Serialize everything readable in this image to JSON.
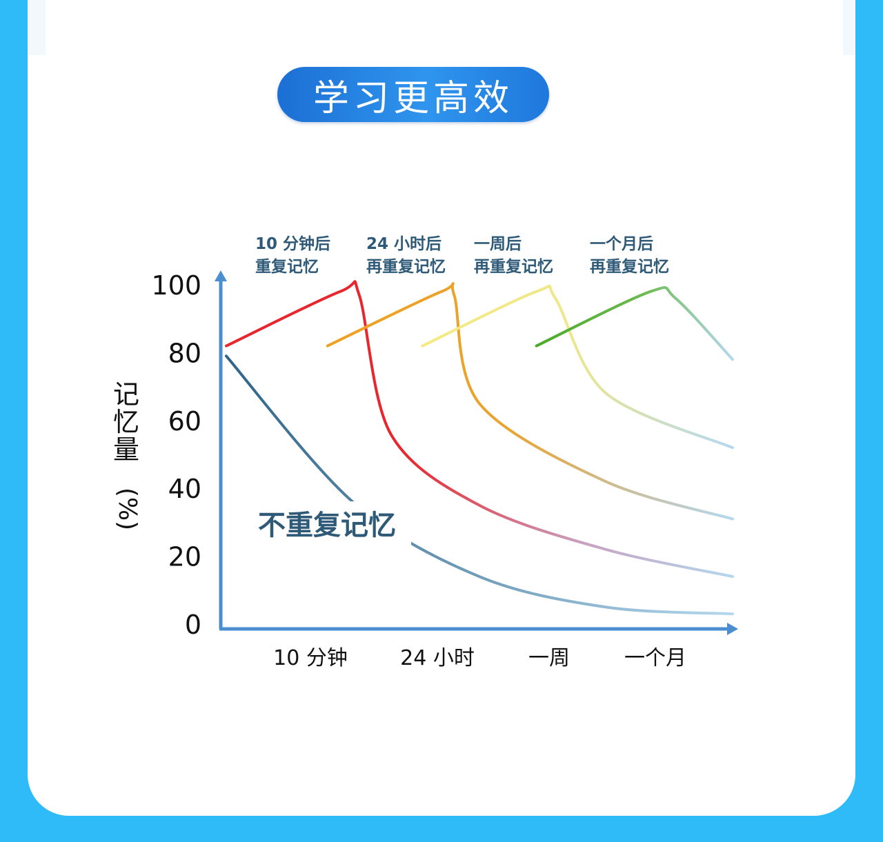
{
  "header": {
    "title": "学习更高效"
  },
  "chart_data": {
    "type": "line",
    "title": "",
    "ylabel": "记忆量",
    "ylabel_unit": "(%)",
    "ylim": [
      0,
      100
    ],
    "y_ticks": [
      "100",
      "80",
      "60",
      "40",
      "20",
      "0"
    ],
    "x_ticks": [
      "10 分钟",
      "24 小时",
      "一周",
      "一个月"
    ],
    "grid": false,
    "colors": {
      "axis": "#4a8ed0",
      "red": "#e8262e",
      "orange": "#f0a020",
      "yellow": "#f4ea80",
      "green": "#4aaa28",
      "no_repeat": "#2f6488",
      "tail": "#b4d8ee"
    },
    "annotations": [
      {
        "line1": "10 分钟后",
        "line2": "重复记忆"
      },
      {
        "line1": "24 小时后",
        "line2": "再重复记忆"
      },
      {
        "line1": "一周后",
        "line2": "再重复记忆"
      },
      {
        "line1": "一个月后",
        "line2": "再重复记忆"
      }
    ],
    "series": [
      {
        "name": "不重复记忆",
        "points": [
          [
            0,
            79
          ],
          [
            1,
            36
          ],
          [
            2,
            14
          ],
          [
            3,
            5
          ],
          [
            4,
            3
          ]
        ]
      },
      {
        "points": [
          [
            0,
            82
          ],
          [
            0.9,
            98
          ],
          [
            1.05,
            97
          ],
          [
            1.3,
            56
          ],
          [
            2,
            35
          ],
          [
            3,
            22
          ],
          [
            4,
            14
          ]
        ]
      },
      {
        "points": [
          [
            0.8,
            82
          ],
          [
            1.7,
            98
          ],
          [
            1.8,
            97
          ],
          [
            2,
            65
          ],
          [
            3,
            42
          ],
          [
            4,
            31
          ]
        ]
      },
      {
        "points": [
          [
            1.55,
            82
          ],
          [
            2.45,
            98
          ],
          [
            2.6,
            96
          ],
          [
            3,
            68
          ],
          [
            4,
            52
          ]
        ]
      },
      {
        "points": [
          [
            2.45,
            82
          ],
          [
            3.35,
            98
          ],
          [
            3.55,
            96
          ],
          [
            4,
            78
          ]
        ]
      }
    ]
  }
}
